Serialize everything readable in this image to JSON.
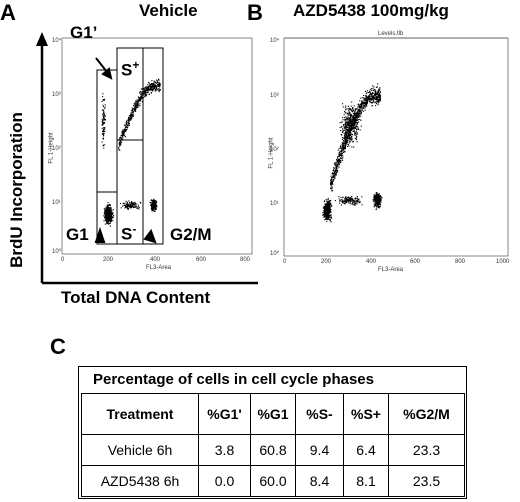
{
  "panels": {
    "a": {
      "letter": "A",
      "title": "Vehicle",
      "y_axis_title": "BrdU Incorporation",
      "x_axis_title": "Total DNA Content",
      "gates": {
        "g1_prime": "G1’",
        "s_plus": "S",
        "s_plus_sup": "+",
        "g1": "G1",
        "s_minus": "S",
        "s_minus_sup": "-",
        "g2m": "G2/M"
      },
      "y_ticks": [
        "10⁴",
        "10³",
        "10²",
        "10¹",
        "10⁰"
      ],
      "x_ticks": [
        "0",
        "200",
        "400",
        "600",
        "800"
      ],
      "y_small_label": "FL 1-Height",
      "x_small_label": "FL3-Area"
    },
    "b": {
      "letter": "B",
      "title": "AZD5438 100mg/kg",
      "header_label": "Levels.tlb",
      "y_ticks": [
        "10⁴",
        "10³",
        "10²",
        "10¹",
        "10⁰"
      ],
      "x_ticks": [
        "0",
        "200",
        "400",
        "600",
        "800",
        "1000"
      ],
      "y_small_label": "FL 1-Height",
      "x_small_label": "FL3-Area"
    },
    "c": {
      "letter": "C",
      "caption": "Percentage of cells in cell cycle phases",
      "headers": [
        "Treatment",
        "%G1'",
        "%G1",
        "%S-",
        "%S+",
        "%G2/M"
      ],
      "rows": [
        [
          "Vehicle 6h",
          "3.8",
          "60.8",
          "9.4",
          "6.4",
          "23.3"
        ],
        [
          "AZD5438 6h",
          "0.0",
          "60.0",
          "8.4",
          "8.1",
          "23.5"
        ]
      ]
    }
  }
}
